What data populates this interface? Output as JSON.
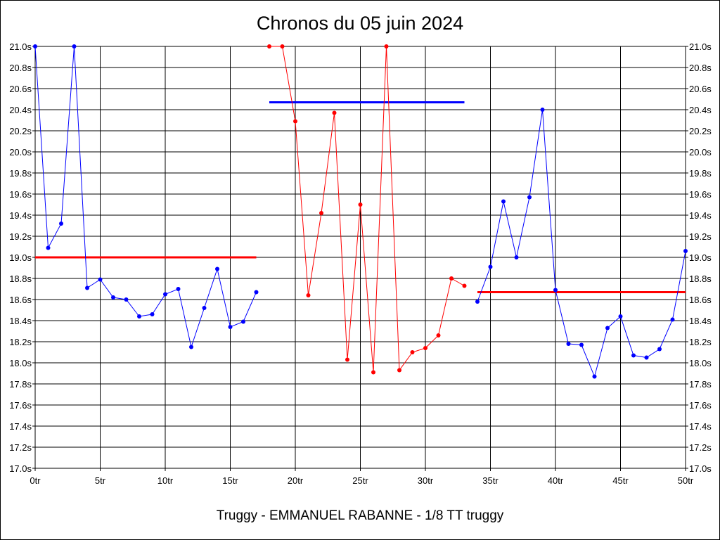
{
  "chart_data": {
    "type": "line",
    "title": "Chronos du 05 juin 2024",
    "subtitle": "Truggy - EMMANUEL RABANNE - 1/8 TT truggy",
    "xlabel": "",
    "ylabel": "",
    "xlim": [
      0,
      50
    ],
    "ylim": [
      17.0,
      21.0
    ],
    "x_ticks": [
      0,
      5,
      10,
      15,
      20,
      25,
      30,
      35,
      40,
      45,
      50
    ],
    "x_tick_labels": [
      "0tr",
      "5tr",
      "10tr",
      "15tr",
      "20tr",
      "25tr",
      "30tr",
      "35tr",
      "40tr",
      "45tr",
      "50tr"
    ],
    "y_ticks": [
      17.0,
      17.2,
      17.4,
      17.6,
      17.8,
      18.0,
      18.2,
      18.4,
      18.6,
      18.8,
      19.0,
      19.2,
      19.4,
      19.6,
      19.8,
      20.0,
      20.2,
      20.4,
      20.6,
      20.8,
      21.0
    ],
    "y_tick_labels": [
      "17.0s",
      "17.2s",
      "17.4s",
      "17.6s",
      "17.8s",
      "18.0s",
      "18.2s",
      "18.4s",
      "18.6s",
      "18.8s",
      "19.0s",
      "19.2s",
      "19.4s",
      "19.6s",
      "19.8s",
      "20.0s",
      "20.2s",
      "20.4s",
      "20.6s",
      "20.8s",
      "21.0s"
    ],
    "grid": true,
    "legend": "none",
    "series": [
      {
        "color": "#0000ff",
        "x": [
          0,
          1,
          2,
          3,
          4,
          5,
          6,
          7,
          8,
          9,
          10,
          11,
          12,
          13,
          14,
          15,
          16,
          17
        ],
        "values": [
          21.0,
          19.09,
          19.32,
          21.0,
          18.71,
          18.79,
          18.62,
          18.6,
          18.44,
          18.46,
          18.65,
          18.7,
          18.15,
          18.52,
          18.89,
          18.34,
          18.39,
          18.67
        ]
      },
      {
        "color": "#ff0000",
        "x": [
          18,
          19,
          20,
          21,
          22,
          23,
          24,
          25,
          26,
          27,
          28,
          29,
          30,
          31,
          32,
          33
        ],
        "values": [
          21.0,
          21.0,
          20.29,
          18.64,
          19.42,
          20.37,
          18.03,
          19.5,
          17.91,
          21.0,
          17.93,
          18.1,
          18.14,
          18.26,
          18.8,
          18.73
        ]
      },
      {
        "color": "#0000ff",
        "x": [
          34,
          35,
          36,
          37,
          38,
          39,
          40,
          41,
          42,
          43,
          44,
          45,
          46,
          47,
          48,
          49,
          50
        ],
        "values": [
          18.58,
          18.91,
          19.53,
          19.0,
          19.57,
          20.4,
          18.69,
          18.18,
          18.17,
          17.87,
          18.33,
          18.44,
          18.07,
          18.05,
          18.13,
          18.41,
          19.06
        ]
      }
    ],
    "average_lines": [
      {
        "color": "#ff0000",
        "x_start": 0,
        "x_end": 17,
        "value": 19.0
      },
      {
        "color": "#0000ff",
        "x_start": 18,
        "x_end": 33,
        "value": 20.47
      },
      {
        "color": "#ff0000",
        "x_start": 34,
        "x_end": 50,
        "value": 18.67
      }
    ]
  }
}
